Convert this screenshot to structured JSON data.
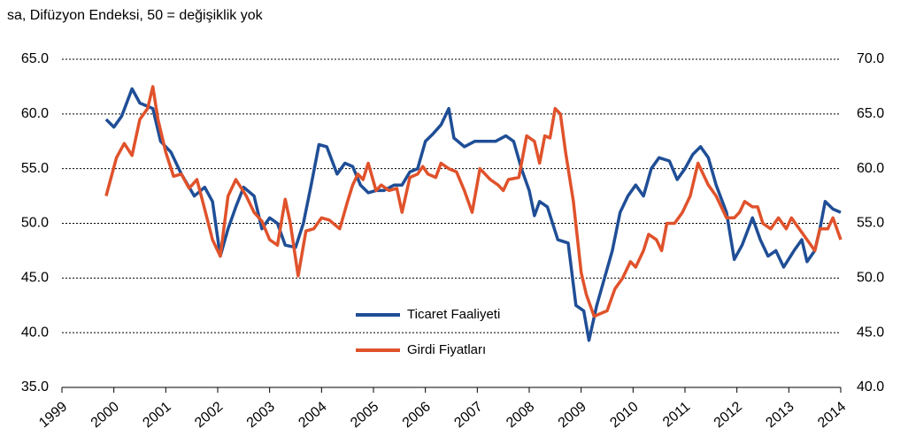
{
  "chart_data": {
    "type": "line",
    "title": "sa, Difüzyon Endeksi, 50 = değişiklik yok",
    "xlim": [
      1999,
      2014
    ],
    "xticks": [
      1999,
      2000,
      2001,
      2002,
      2003,
      2004,
      2005,
      2006,
      2007,
      2008,
      2009,
      2010,
      2011,
      2012,
      2013,
      2014
    ],
    "ylim": [
      35,
      65
    ],
    "yticks": [
      {
        "value": 35,
        "label": "35.0"
      },
      {
        "value": 40,
        "label": "40.0"
      },
      {
        "value": 45,
        "label": "45.0"
      },
      {
        "value": 50,
        "label": "50.0"
      },
      {
        "value": 55,
        "label": "55.0"
      },
      {
        "value": 60,
        "label": "60.0"
      },
      {
        "value": 65,
        "label": "65.0"
      }
    ],
    "y2lim": [
      40,
      70
    ],
    "y2ticks": [
      {
        "value": 40,
        "label": "40.0"
      },
      {
        "value": 45,
        "label": "45.0"
      },
      {
        "value": 50,
        "label": "50.0"
      },
      {
        "value": 55,
        "label": "55.0"
      },
      {
        "value": 60,
        "label": "60.0"
      },
      {
        "value": 65,
        "label": "65.0"
      },
      {
        "value": 70,
        "label": "70.0"
      }
    ],
    "grid": true,
    "series": [
      {
        "name": "Ticaret Faaliyeti",
        "color": "#1f4e96",
        "axis": "y",
        "x": [
          1999.85,
          2000.0,
          2000.15,
          2000.35,
          2000.5,
          2000.75,
          2000.9,
          2001.1,
          2001.3,
          2001.55,
          2001.75,
          2001.9,
          2002.05,
          2002.2,
          2002.35,
          2002.5,
          2002.7,
          2002.85,
          2003.0,
          2003.15,
          2003.3,
          2003.5,
          2003.65,
          2003.8,
          2003.95,
          2004.1,
          2004.3,
          2004.45,
          2004.6,
          2004.75,
          2004.9,
          2005.05,
          2005.2,
          2005.4,
          2005.55,
          2005.7,
          2005.85,
          2006.0,
          2006.15,
          2006.3,
          2006.45,
          2006.55,
          2006.75,
          2006.95,
          2007.15,
          2007.35,
          2007.55,
          2007.7,
          2007.85,
          2008.0,
          2008.1,
          2008.2,
          2008.35,
          2008.55,
          2008.75,
          2008.9,
          2009.05,
          2009.15,
          2009.3,
          2009.45,
          2009.6,
          2009.75,
          2009.9,
          2010.05,
          2010.2,
          2010.35,
          2010.5,
          2010.7,
          2010.85,
          2011.0,
          2011.15,
          2011.3,
          2011.45,
          2011.6,
          2011.8,
          2011.95,
          2012.1,
          2012.3,
          2012.45,
          2012.6,
          2012.75,
          2012.9,
          2013.1,
          2013.25,
          2013.35,
          2013.5,
          2013.6,
          2013.7,
          2013.85,
          2014.0
        ],
        "values": [
          59.5,
          58.8,
          59.8,
          62.3,
          61.0,
          60.5,
          57.5,
          56.5,
          54.5,
          52.5,
          53.3,
          52.0,
          47.0,
          49.5,
          51.5,
          53.3,
          52.5,
          49.5,
          50.5,
          50.0,
          48.0,
          47.8,
          50.0,
          53.5,
          57.2,
          57.0,
          54.5,
          55.5,
          55.2,
          53.5,
          52.8,
          53.0,
          53.0,
          53.5,
          53.5,
          54.7,
          55.0,
          57.5,
          58.2,
          59.0,
          60.5,
          57.8,
          57.0,
          57.5,
          57.5,
          57.5,
          58.0,
          57.5,
          55.0,
          53.0,
          50.7,
          52.0,
          51.5,
          48.5,
          48.2,
          42.5,
          42.0,
          39.3,
          42.5,
          45.0,
          47.5,
          51.0,
          52.5,
          53.5,
          52.5,
          55.0,
          56.0,
          55.7,
          54.0,
          55.0,
          56.3,
          57.0,
          56.0,
          53.5,
          51.0,
          46.7,
          48.0,
          50.5,
          48.5,
          47.0,
          47.5,
          46.0,
          47.5,
          48.5,
          46.5,
          47.5,
          49.5,
          52.0,
          51.3,
          51.0
        ]
      },
      {
        "name": "Girdi Fiyatları",
        "color": "#e0522b",
        "axis": "y2",
        "x": [
          1999.85,
          2000.05,
          2000.2,
          2000.35,
          2000.5,
          2000.65,
          2000.75,
          2000.85,
          2001.0,
          2001.15,
          2001.3,
          2001.45,
          2001.6,
          2001.75,
          2001.9,
          2002.05,
          2002.2,
          2002.35,
          2002.55,
          2002.7,
          2002.85,
          2003.0,
          2003.15,
          2003.3,
          2003.4,
          2003.55,
          2003.7,
          2003.85,
          2004.0,
          2004.15,
          2004.35,
          2004.5,
          2004.6,
          2004.7,
          2004.8,
          2004.9,
          2005.05,
          2005.15,
          2005.3,
          2005.45,
          2005.55,
          2005.7,
          2005.85,
          2005.95,
          2006.05,
          2006.2,
          2006.3,
          2006.45,
          2006.6,
          2006.75,
          2006.9,
          2007.05,
          2007.25,
          2007.4,
          2007.5,
          2007.6,
          2007.8,
          2007.95,
          2008.1,
          2008.2,
          2008.3,
          2008.4,
          2008.5,
          2008.6,
          2008.7,
          2008.85,
          2009.0,
          2009.1,
          2009.25,
          2009.4,
          2009.5,
          2009.65,
          2009.8,
          2009.95,
          2010.05,
          2010.2,
          2010.3,
          2010.45,
          2010.55,
          2010.65,
          2010.8,
          2010.95,
          2011.1,
          2011.25,
          2011.45,
          2011.6,
          2011.8,
          2011.95,
          2012.05,
          2012.15,
          2012.3,
          2012.4,
          2012.5,
          2012.65,
          2012.8,
          2012.95,
          2013.05,
          2013.2,
          2013.35,
          2013.5,
          2013.6,
          2013.75,
          2013.85,
          2014.0
        ],
        "values": [
          57.5,
          61.0,
          62.3,
          61.2,
          64.5,
          65.5,
          67.5,
          64.5,
          61.5,
          59.3,
          59.5,
          58.2,
          59.0,
          56.3,
          53.5,
          52.0,
          57.5,
          59.0,
          57.5,
          56.0,
          55.2,
          53.5,
          53.0,
          57.2,
          55.0,
          50.2,
          54.3,
          54.5,
          55.5,
          55.3,
          54.5,
          57.0,
          58.5,
          59.5,
          59.0,
          60.5,
          58.0,
          58.5,
          58.0,
          58.2,
          56.0,
          59.2,
          59.5,
          60.2,
          59.5,
          59.2,
          60.5,
          60.0,
          59.7,
          58.0,
          56.0,
          60.0,
          59.0,
          58.5,
          58.0,
          59.0,
          59.2,
          63.0,
          62.5,
          60.5,
          63.0,
          62.8,
          65.5,
          65.0,
          61.5,
          57.0,
          50.5,
          48.5,
          46.5,
          46.8,
          47.0,
          49.0,
          50.0,
          51.5,
          51.0,
          52.5,
          54.0,
          53.5,
          52.5,
          55.0,
          55.0,
          56.0,
          57.5,
          60.5,
          58.5,
          57.5,
          55.5,
          55.5,
          56.0,
          57.0,
          56.5,
          56.5,
          55.0,
          54.5,
          55.5,
          54.5,
          55.5,
          54.5,
          53.5,
          52.5,
          54.5,
          54.5,
          55.5,
          53.5
        ]
      }
    ]
  }
}
